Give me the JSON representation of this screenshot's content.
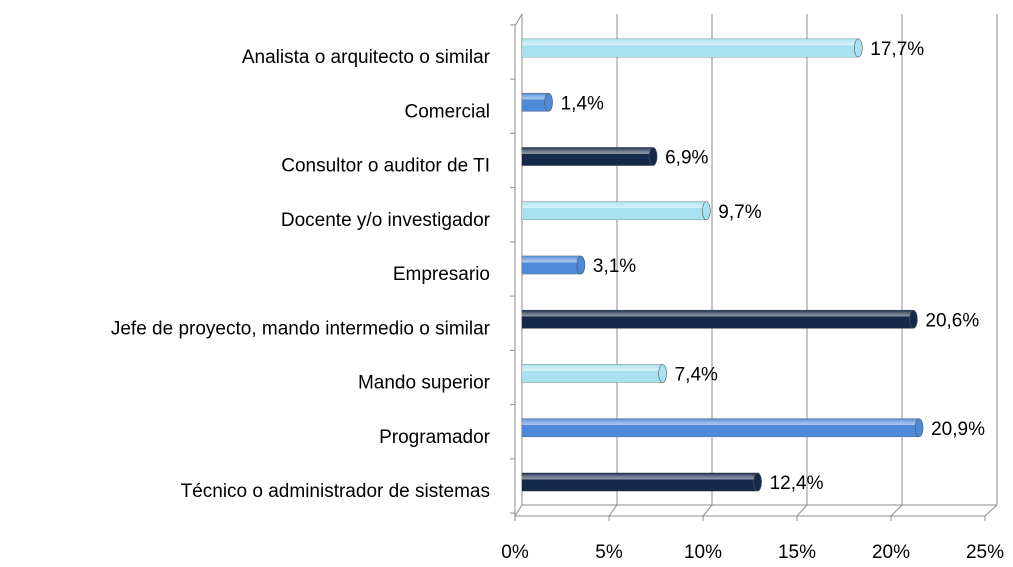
{
  "chart_data": {
    "type": "bar",
    "orientation": "horizontal",
    "categories": [
      "Analista o arquitecto o similar",
      "Comercial",
      "Consultor o auditor de TI",
      "Docente y/o investigador",
      "Empresario",
      "Jefe de proyecto, mando intermedio o similar",
      "Mando superior",
      "Programador",
      "Técnico o administrador de sistemas"
    ],
    "values": [
      17.7,
      1.4,
      6.9,
      9.7,
      3.1,
      20.6,
      7.4,
      20.9,
      12.4
    ],
    "value_labels": [
      "17,7%",
      "1,4%",
      "6,9%",
      "9,7%",
      "3,1%",
      "20,6%",
      "7,4%",
      "20,9%",
      "12,4%"
    ],
    "colors": [
      "#a8e2f0",
      "#4f8ad8",
      "#15294a",
      "#a8e2f0",
      "#4f8ad8",
      "#15294a",
      "#a8e2f0",
      "#4f8ad8",
      "#15294a"
    ],
    "xlim": [
      0,
      25
    ],
    "xticks": [
      {
        "value": 0,
        "label": "0%"
      },
      {
        "value": 5,
        "label": "5%"
      },
      {
        "value": 10,
        "label": "10%"
      },
      {
        "value": 15,
        "label": "15%"
      },
      {
        "value": 20,
        "label": "20%"
      },
      {
        "value": 25,
        "label": "25%"
      }
    ],
    "grid": true
  }
}
